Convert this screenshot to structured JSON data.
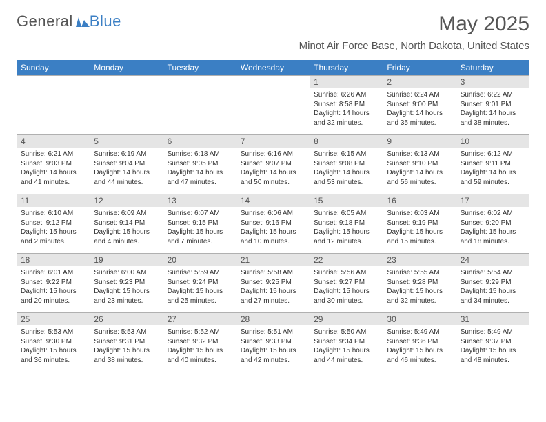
{
  "brand": {
    "part1": "General",
    "part2": "Blue"
  },
  "title": "May 2025",
  "location": "Minot Air Force Base, North Dakota, United States",
  "colors": {
    "header_bg": "#3b7fc4",
    "daynum_bg": "#e5e5e5",
    "text": "#555555",
    "border": "#b0b0b0"
  },
  "daysOfWeek": [
    "Sunday",
    "Monday",
    "Tuesday",
    "Wednesday",
    "Thursday",
    "Friday",
    "Saturday"
  ],
  "weeks": [
    [
      {
        "empty": true
      },
      {
        "empty": true
      },
      {
        "empty": true
      },
      {
        "empty": true
      },
      {
        "num": "1",
        "sunrise": "Sunrise: 6:26 AM",
        "sunset": "Sunset: 8:58 PM",
        "day1": "Daylight: 14 hours",
        "day2": "and 32 minutes."
      },
      {
        "num": "2",
        "sunrise": "Sunrise: 6:24 AM",
        "sunset": "Sunset: 9:00 PM",
        "day1": "Daylight: 14 hours",
        "day2": "and 35 minutes."
      },
      {
        "num": "3",
        "sunrise": "Sunrise: 6:22 AM",
        "sunset": "Sunset: 9:01 PM",
        "day1": "Daylight: 14 hours",
        "day2": "and 38 minutes."
      }
    ],
    [
      {
        "num": "4",
        "sunrise": "Sunrise: 6:21 AM",
        "sunset": "Sunset: 9:03 PM",
        "day1": "Daylight: 14 hours",
        "day2": "and 41 minutes."
      },
      {
        "num": "5",
        "sunrise": "Sunrise: 6:19 AM",
        "sunset": "Sunset: 9:04 PM",
        "day1": "Daylight: 14 hours",
        "day2": "and 44 minutes."
      },
      {
        "num": "6",
        "sunrise": "Sunrise: 6:18 AM",
        "sunset": "Sunset: 9:05 PM",
        "day1": "Daylight: 14 hours",
        "day2": "and 47 minutes."
      },
      {
        "num": "7",
        "sunrise": "Sunrise: 6:16 AM",
        "sunset": "Sunset: 9:07 PM",
        "day1": "Daylight: 14 hours",
        "day2": "and 50 minutes."
      },
      {
        "num": "8",
        "sunrise": "Sunrise: 6:15 AM",
        "sunset": "Sunset: 9:08 PM",
        "day1": "Daylight: 14 hours",
        "day2": "and 53 minutes."
      },
      {
        "num": "9",
        "sunrise": "Sunrise: 6:13 AM",
        "sunset": "Sunset: 9:10 PM",
        "day1": "Daylight: 14 hours",
        "day2": "and 56 minutes."
      },
      {
        "num": "10",
        "sunrise": "Sunrise: 6:12 AM",
        "sunset": "Sunset: 9:11 PM",
        "day1": "Daylight: 14 hours",
        "day2": "and 59 minutes."
      }
    ],
    [
      {
        "num": "11",
        "sunrise": "Sunrise: 6:10 AM",
        "sunset": "Sunset: 9:12 PM",
        "day1": "Daylight: 15 hours",
        "day2": "and 2 minutes."
      },
      {
        "num": "12",
        "sunrise": "Sunrise: 6:09 AM",
        "sunset": "Sunset: 9:14 PM",
        "day1": "Daylight: 15 hours",
        "day2": "and 4 minutes."
      },
      {
        "num": "13",
        "sunrise": "Sunrise: 6:07 AM",
        "sunset": "Sunset: 9:15 PM",
        "day1": "Daylight: 15 hours",
        "day2": "and 7 minutes."
      },
      {
        "num": "14",
        "sunrise": "Sunrise: 6:06 AM",
        "sunset": "Sunset: 9:16 PM",
        "day1": "Daylight: 15 hours",
        "day2": "and 10 minutes."
      },
      {
        "num": "15",
        "sunrise": "Sunrise: 6:05 AM",
        "sunset": "Sunset: 9:18 PM",
        "day1": "Daylight: 15 hours",
        "day2": "and 12 minutes."
      },
      {
        "num": "16",
        "sunrise": "Sunrise: 6:03 AM",
        "sunset": "Sunset: 9:19 PM",
        "day1": "Daylight: 15 hours",
        "day2": "and 15 minutes."
      },
      {
        "num": "17",
        "sunrise": "Sunrise: 6:02 AM",
        "sunset": "Sunset: 9:20 PM",
        "day1": "Daylight: 15 hours",
        "day2": "and 18 minutes."
      }
    ],
    [
      {
        "num": "18",
        "sunrise": "Sunrise: 6:01 AM",
        "sunset": "Sunset: 9:22 PM",
        "day1": "Daylight: 15 hours",
        "day2": "and 20 minutes."
      },
      {
        "num": "19",
        "sunrise": "Sunrise: 6:00 AM",
        "sunset": "Sunset: 9:23 PM",
        "day1": "Daylight: 15 hours",
        "day2": "and 23 minutes."
      },
      {
        "num": "20",
        "sunrise": "Sunrise: 5:59 AM",
        "sunset": "Sunset: 9:24 PM",
        "day1": "Daylight: 15 hours",
        "day2": "and 25 minutes."
      },
      {
        "num": "21",
        "sunrise": "Sunrise: 5:58 AM",
        "sunset": "Sunset: 9:25 PM",
        "day1": "Daylight: 15 hours",
        "day2": "and 27 minutes."
      },
      {
        "num": "22",
        "sunrise": "Sunrise: 5:56 AM",
        "sunset": "Sunset: 9:27 PM",
        "day1": "Daylight: 15 hours",
        "day2": "and 30 minutes."
      },
      {
        "num": "23",
        "sunrise": "Sunrise: 5:55 AM",
        "sunset": "Sunset: 9:28 PM",
        "day1": "Daylight: 15 hours",
        "day2": "and 32 minutes."
      },
      {
        "num": "24",
        "sunrise": "Sunrise: 5:54 AM",
        "sunset": "Sunset: 9:29 PM",
        "day1": "Daylight: 15 hours",
        "day2": "and 34 minutes."
      }
    ],
    [
      {
        "num": "25",
        "sunrise": "Sunrise: 5:53 AM",
        "sunset": "Sunset: 9:30 PM",
        "day1": "Daylight: 15 hours",
        "day2": "and 36 minutes."
      },
      {
        "num": "26",
        "sunrise": "Sunrise: 5:53 AM",
        "sunset": "Sunset: 9:31 PM",
        "day1": "Daylight: 15 hours",
        "day2": "and 38 minutes."
      },
      {
        "num": "27",
        "sunrise": "Sunrise: 5:52 AM",
        "sunset": "Sunset: 9:32 PM",
        "day1": "Daylight: 15 hours",
        "day2": "and 40 minutes."
      },
      {
        "num": "28",
        "sunrise": "Sunrise: 5:51 AM",
        "sunset": "Sunset: 9:33 PM",
        "day1": "Daylight: 15 hours",
        "day2": "and 42 minutes."
      },
      {
        "num": "29",
        "sunrise": "Sunrise: 5:50 AM",
        "sunset": "Sunset: 9:34 PM",
        "day1": "Daylight: 15 hours",
        "day2": "and 44 minutes."
      },
      {
        "num": "30",
        "sunrise": "Sunrise: 5:49 AM",
        "sunset": "Sunset: 9:36 PM",
        "day1": "Daylight: 15 hours",
        "day2": "and 46 minutes."
      },
      {
        "num": "31",
        "sunrise": "Sunrise: 5:49 AM",
        "sunset": "Sunset: 9:37 PM",
        "day1": "Daylight: 15 hours",
        "day2": "and 48 minutes."
      }
    ]
  ]
}
